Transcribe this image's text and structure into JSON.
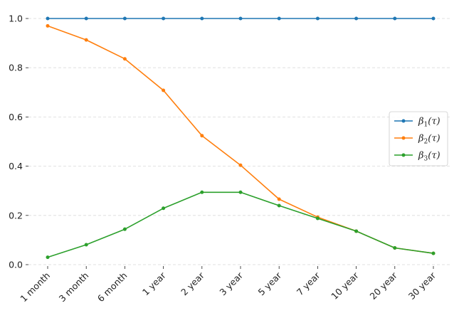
{
  "chart_data": {
    "type": "line",
    "categories": [
      "1 month",
      "3 month",
      "6 month",
      "1 year",
      "2 year",
      "3 year",
      "5 year",
      "7 year",
      "10 year",
      "20 year",
      "30 year"
    ],
    "series": [
      {
        "name": "β1(τ)",
        "symbol": "β",
        "sub": "1",
        "arg": "(τ)",
        "color": "#1f77b4",
        "values": [
          1.0,
          1.0,
          1.0,
          1.0,
          1.0,
          1.0,
          1.0,
          1.0,
          1.0,
          1.0,
          1.0
        ]
      },
      {
        "name": "β2(τ)",
        "symbol": "β",
        "sub": "2",
        "arg": "(τ)",
        "color": "#ff7f0e",
        "values": [
          0.97,
          0.913,
          0.836,
          0.708,
          0.524,
          0.404,
          0.266,
          0.193,
          0.136,
          0.068,
          0.046
        ]
      },
      {
        "name": "β3(τ)",
        "symbol": "β",
        "sub": "3",
        "arg": "(τ)",
        "color": "#2ca02c",
        "values": [
          0.03,
          0.081,
          0.144,
          0.229,
          0.294,
          0.294,
          0.24,
          0.188,
          0.136,
          0.068,
          0.046
        ]
      }
    ],
    "yticks": [
      "0.0",
      "0.2",
      "0.4",
      "0.6",
      "0.8",
      "1.0"
    ],
    "ylim": [
      0,
      1.0
    ],
    "grid": "y-dashed",
    "legend": "center-right",
    "title": "",
    "xlabel": "",
    "ylabel": ""
  }
}
